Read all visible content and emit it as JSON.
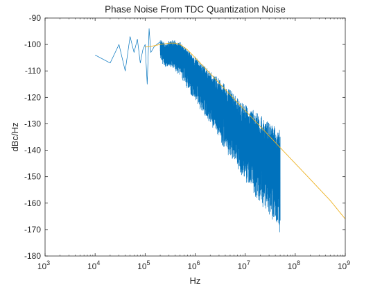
{
  "chart_data": {
    "type": "line",
    "title": "Phase Noise From TDC Quantization Noise",
    "xlabel": "Hz",
    "ylabel": "dBc/Hz",
    "xscale": "log",
    "xlim": [
      1000,
      1000000000
    ],
    "ylim": [
      -180,
      -90
    ],
    "xticks": [
      {
        "value": 1000,
        "base": "10",
        "exp": "3"
      },
      {
        "value": 10000,
        "base": "10",
        "exp": "4"
      },
      {
        "value": 100000,
        "base": "10",
        "exp": "5"
      },
      {
        "value": 1000000,
        "base": "10",
        "exp": "6"
      },
      {
        "value": 10000000,
        "base": "10",
        "exp": "7"
      },
      {
        "value": 100000000,
        "base": "10",
        "exp": "8"
      },
      {
        "value": 1000000000,
        "base": "10",
        "exp": "9"
      }
    ],
    "yticks": [
      {
        "value": -90,
        "label": "-90"
      },
      {
        "value": -100,
        "label": "-100"
      },
      {
        "value": -110,
        "label": "-110"
      },
      {
        "value": -120,
        "label": "-120"
      },
      {
        "value": -130,
        "label": "-130"
      },
      {
        "value": -140,
        "label": "-140"
      },
      {
        "value": -150,
        "label": "-150"
      },
      {
        "value": -160,
        "label": "-160"
      },
      {
        "value": -170,
        "label": "-170"
      },
      {
        "value": -180,
        "label": "-180"
      }
    ],
    "grid": false,
    "box": true,
    "series": [
      {
        "color": "#0072BD",
        "style": "noisy-simulated",
        "x_end": 50000000,
        "x": [
          10000,
          20000,
          30000,
          40000,
          50000,
          60000,
          70000,
          80000,
          90000,
          100000,
          110000,
          120000,
          130000,
          150000,
          170000,
          200000,
          250000,
          300000,
          400000,
          500000,
          700000,
          1000000,
          2000000,
          5000000,
          10000000,
          20000000,
          50000000
        ],
        "y": [
          -104,
          -107,
          -100,
          -110,
          -97,
          -103,
          -98,
          -107,
          -102,
          -100,
          -115,
          -94,
          -103,
          -101,
          -100,
          -99,
          -101,
          -100,
          -100,
          -101,
          -104,
          -107,
          -113,
          -121,
          -127,
          -132,
          -138
        ]
      },
      {
        "color": "#EDB120",
        "style": "smooth-model",
        "x": [
          100000,
          150000,
          200000,
          300000,
          400000,
          500000,
          700000,
          1000000,
          2000000,
          5000000,
          10000000,
          20000000,
          50000000,
          100000000,
          200000000,
          500000000,
          1000000000
        ],
        "y": [
          -101,
          -100.5,
          -100,
          -99.5,
          -99.5,
          -100,
          -102,
          -105,
          -111,
          -119,
          -125,
          -131,
          -139,
          -145,
          -151,
          -159,
          -166
        ]
      }
    ]
  }
}
